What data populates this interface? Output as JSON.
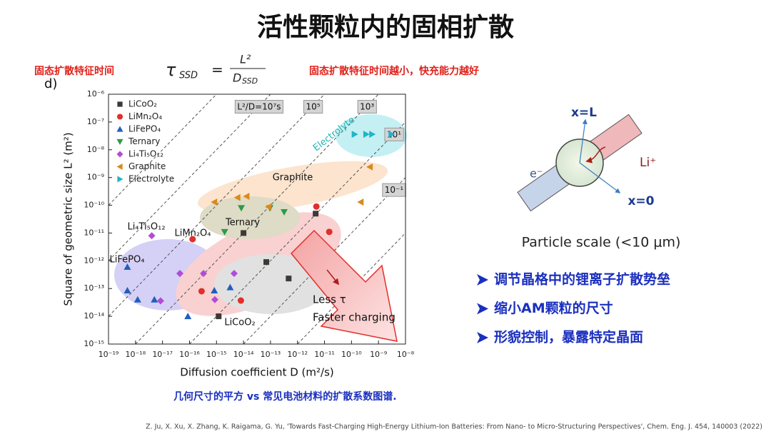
{
  "slide": {
    "title": "活性颗粒内的固相扩散",
    "left_note": "固态扩散特征时间",
    "formula": {
      "lhs": "τ",
      "lhs_sub": "SSD",
      "eq": "=",
      "num": "L²",
      "den": "D",
      "den_sub": "SSD"
    },
    "right_note": "固态扩散特征时间越小，快充能力越好",
    "panel_label": "d)",
    "caption": "几何尺寸的平方 vs 常见电池材料的扩散系数图谱.",
    "reference": "Z. Ju, X. Xu, X. Zhang, K. Raigama, G. Yu, 'Towards Fast-Charging High-Energy Lithium-Ion Batteries: From Nano- to Micro-Structuring Perspectives', Chem. Eng. J. 454, 140003 (2022)",
    "diagram": {
      "top": "x=L",
      "ion": "Li⁺",
      "electron": "e⁻",
      "bottom": "x=0",
      "caption": "Particle scale (<10 μm)"
    },
    "bullets": [
      "调节晶格中的锂离子扩散势垒",
      "缩小AM颗粒的尺寸",
      "形貌控制，暴露特定晶面"
    ]
  },
  "chart_data": {
    "type": "scatter",
    "x_label": "Diffusion coefficient D (m²/s)",
    "y_label": "Square of geometric size L² (m²)",
    "xscale": "log",
    "yscale": "log",
    "xlim": [
      1e-19,
      1e-08
    ],
    "ylim": [
      1e-15,
      1e-06
    ],
    "xticks": [
      {
        "value": 1e-19,
        "label": "10⁻¹⁹"
      },
      {
        "value": 1e-18,
        "label": "10⁻¹⁸"
      },
      {
        "value": 1e-17,
        "label": "10⁻¹⁷"
      },
      {
        "value": 1e-16,
        "label": "10⁻¹⁶"
      },
      {
        "value": 1e-15,
        "label": "10⁻¹⁵"
      },
      {
        "value": 1e-14,
        "label": "10⁻¹⁴"
      },
      {
        "value": 1e-13,
        "label": "10⁻¹³"
      },
      {
        "value": 1e-12,
        "label": "10⁻¹²"
      },
      {
        "value": 1e-11,
        "label": "10⁻¹¹"
      },
      {
        "value": 1e-10,
        "label": "10⁻¹⁰"
      },
      {
        "value": 1e-09,
        "label": "10⁻⁹"
      },
      {
        "value": 1e-08,
        "label": "10⁻⁸"
      }
    ],
    "yticks": [
      {
        "value": 1e-15,
        "label": "10⁻¹⁵"
      },
      {
        "value": 1e-14,
        "label": "10⁻¹⁴"
      },
      {
        "value": 1e-13,
        "label": "10⁻¹³"
      },
      {
        "value": 1e-12,
        "label": "10⁻¹²"
      },
      {
        "value": 1e-11,
        "label": "10⁻¹¹"
      },
      {
        "value": 1e-10,
        "label": "10⁻¹⁰"
      },
      {
        "value": 1e-09,
        "label": "10⁻⁹"
      },
      {
        "value": 1e-08,
        "label": "10⁻⁸"
      },
      {
        "value": 1e-07,
        "label": "10⁻⁷"
      },
      {
        "value": 1e-06,
        "label": "10⁻⁶"
      }
    ],
    "legend": "upper left",
    "guide_lines": [
      1000000000.0,
      {
        "value": 10000000.0,
        "label": "L²/D=10⁷s"
      },
      {
        "value": 100000.0,
        "label": "10⁵"
      },
      {
        "value": 1000.0,
        "label": "10³"
      },
      {
        "value": 10.0,
        "label": "10¹"
      },
      {
        "value": 0.1,
        "label": "10⁻¹"
      },
      0.001
    ],
    "series": [
      {
        "name": "LiCoO₂",
        "color": "#3d3a36",
        "marker": "square",
        "x": [
          1.2e-15,
          1e-14,
          7e-14,
          4.7e-13,
          4.7e-12
        ],
        "y": [
          1e-14,
          1e-11,
          9e-13,
          2.3e-13,
          5e-11
        ]
      },
      {
        "name": "LiMn₂O₄",
        "color": "#e0302c",
        "marker": "circle",
        "x": [
          1.3e-16,
          2.8e-16,
          8e-15,
          5e-12,
          1.5e-11
        ],
        "y": [
          6e-12,
          8e-14,
          3.7e-14,
          9e-11,
          1.1e-11
        ]
      },
      {
        "name": "LiFePO₄",
        "color": "#1f5fbf",
        "marker": "triangle-up",
        "x": [
          5e-19,
          5e-19,
          1.2e-18,
          5e-18,
          8.7e-17,
          8.3e-16,
          3.2e-15
        ],
        "y": [
          6e-13,
          8.5e-14,
          4e-14,
          4e-14,
          1e-14,
          8.5e-14,
          1.1e-13
        ]
      },
      {
        "name": "Ternary",
        "color": "#2e9a47",
        "marker": "triangle-down",
        "x": [
          2e-15,
          8.3e-15,
          9.5e-14,
          3.2e-13
        ],
        "y": [
          1.1e-11,
          8e-11,
          8e-11,
          5.7e-11
        ]
      },
      {
        "name": "Li₄Ti₅O₁₂",
        "color": "#b24bd6",
        "marker": "diamond",
        "x": [
          4e-18,
          8.5e-18,
          4.4e-17,
          3.3e-16,
          8.7e-16,
          4.5e-15
        ],
        "y": [
          8e-12,
          3.6e-14,
          3.5e-13,
          3.5e-13,
          4e-14,
          3.5e-13
        ]
      },
      {
        "name": "Graphite",
        "color": "#d98a1c",
        "marker": "triangle-left",
        "x": [
          8.3e-16,
          6e-15,
          1.3e-14,
          8.5e-14,
          2.2e-10,
          4.8e-10
        ],
        "y": [
          1.3e-10,
          1.9e-10,
          2.1e-10,
          8.7e-11,
          1.3e-10,
          2.4e-09
        ]
      },
      {
        "name": "Electrolyte",
        "color": "#1fb5c8",
        "marker": "triangle-right",
        "x": [
          1.3e-10,
          3.5e-10,
          5.8e-10,
          3e-09
        ],
        "y": [
          3.6e-08,
          3.6e-08,
          3.6e-08,
          3.6e-08
        ]
      }
    ],
    "annotations": {
      "electrolyte": "Electrolyte",
      "graphite": "Graphite",
      "ternary": "Ternary",
      "limn": "LiMn₂O₄",
      "lto": "Li₄Ti₅O₁₂",
      "lfp": "LiFePO₄",
      "lco": "LiCoO₂",
      "less": "Less τ",
      "faster": "Faster charging"
    }
  }
}
